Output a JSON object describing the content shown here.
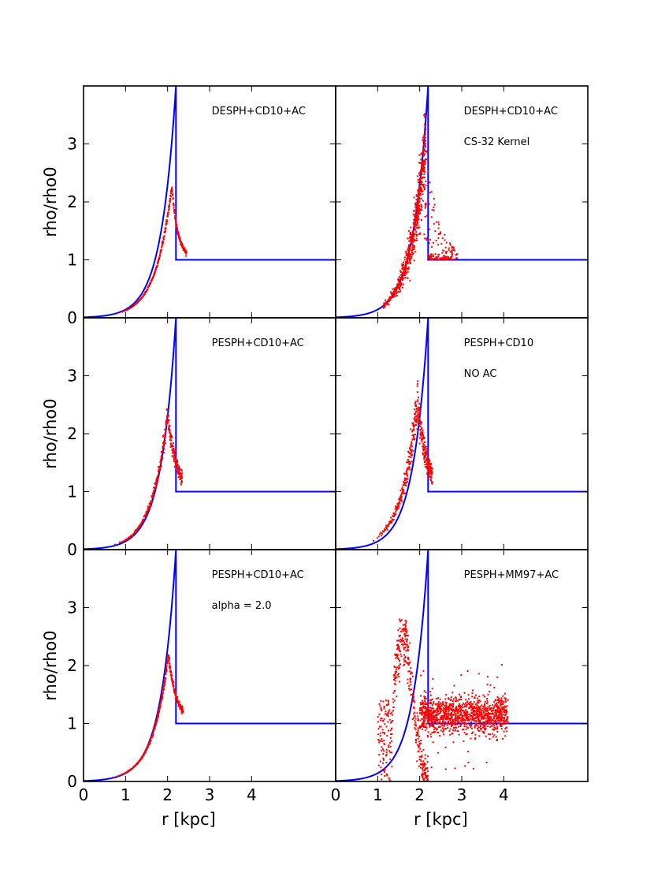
{
  "chart_data": [
    {
      "type": "scatter",
      "row": 0,
      "col": 0,
      "annotations": [
        "DESPH+CD10+AC"
      ],
      "xlim": [
        0,
        6
      ],
      "ylim": [
        0,
        4
      ],
      "xticks": [
        "0",
        "1",
        "2",
        "3",
        "4"
      ],
      "yticks": [
        "0",
        "1",
        "2",
        "3"
      ],
      "xlabel": "",
      "ylabel": "rho/rho0",
      "colors": {
        "model": "#0000ff",
        "particles": "#ff0000"
      },
      "model_curve": {
        "name": "analytic",
        "r_shock": 2.2,
        "peak": 4.0,
        "post": 1.0,
        "scale": 0.36
      },
      "particles": {
        "kind": "tight",
        "r_peak": 2.1,
        "peak": 2.27,
        "r_start": 0.8,
        "decay": 0.15,
        "count": 320,
        "jitter": 0.015
      }
    },
    {
      "type": "scatter",
      "row": 0,
      "col": 1,
      "annotations": [
        "DESPH+CD10+AC",
        "CS-32 Kernel"
      ],
      "xlim": [
        0,
        6
      ],
      "ylim": [
        0,
        4
      ],
      "xticks": [
        "0",
        "1",
        "2",
        "3",
        "4"
      ],
      "yticks": [
        "0",
        "1",
        "2",
        "3"
      ],
      "xlabel": "",
      "ylabel": "",
      "colors": {
        "model": "#0000ff",
        "particles": "#ff0000"
      },
      "model_curve": {
        "name": "analytic",
        "r_shock": 2.2,
        "peak": 4.0,
        "post": 1.0,
        "scale": 0.36
      },
      "particles": {
        "kind": "noisy_peak",
        "r_peak": 2.1,
        "peak": 2.8,
        "max": 3.6,
        "r_start": 1.0,
        "r_end": 2.9,
        "count": 600
      }
    },
    {
      "type": "scatter",
      "row": 1,
      "col": 0,
      "annotations": [
        "PESPH+CD10+AC"
      ],
      "xlim": [
        0,
        6
      ],
      "ylim": [
        0,
        4
      ],
      "xticks": [
        "0",
        "1",
        "2",
        "3",
        "4"
      ],
      "yticks": [
        "0",
        "1",
        "2",
        "3"
      ],
      "xlabel": "",
      "ylabel": "rho/rho0",
      "colors": {
        "model": "#0000ff",
        "particles": "#ff0000"
      },
      "model_curve": {
        "name": "analytic",
        "r_shock": 2.2,
        "peak": 4.0,
        "post": 1.0,
        "scale": 0.36
      },
      "particles": {
        "kind": "tight",
        "r_peak": 2.0,
        "peak": 2.35,
        "r_start": 0.75,
        "decay": 0.2,
        "count": 360,
        "jitter": 0.04
      }
    },
    {
      "type": "scatter",
      "row": 1,
      "col": 1,
      "annotations": [
        "PESPH+CD10",
        "NO AC"
      ],
      "xlim": [
        0,
        6
      ],
      "ylim": [
        0,
        4
      ],
      "xticks": [
        "0",
        "1",
        "2",
        "3",
        "4"
      ],
      "yticks": [
        "0",
        "1",
        "2",
        "3"
      ],
      "xlabel": "",
      "ylabel": "",
      "colors": {
        "model": "#0000ff",
        "particles": "#ff0000"
      },
      "model_curve": {
        "name": "analytic",
        "r_shock": 2.2,
        "peak": 4.0,
        "post": 1.0,
        "scale": 0.36
      },
      "particles": {
        "kind": "tight",
        "r_peak": 1.95,
        "peak": 2.6,
        "r_start": 0.9,
        "decay": 0.2,
        "count": 420,
        "jitter": 0.07
      }
    },
    {
      "type": "scatter",
      "row": 2,
      "col": 0,
      "annotations": [
        "PESPH+CD10+AC",
        "alpha = 2.0"
      ],
      "xlim": [
        0,
        6
      ],
      "ylim": [
        0,
        4
      ],
      "xticks": [
        "0",
        "1",
        "2",
        "3",
        "4"
      ],
      "yticks": [
        "0",
        "1",
        "2",
        "3"
      ],
      "xlabel": "r [kpc]",
      "ylabel": "rho/rho0",
      "colors": {
        "model": "#0000ff",
        "particles": "#ff0000"
      },
      "model_curve": {
        "name": "analytic",
        "r_shock": 2.2,
        "peak": 4.0,
        "post": 1.0,
        "scale": 0.36
      },
      "particles": {
        "kind": "tight",
        "r_peak": 2.02,
        "peak": 2.18,
        "r_start": 0.7,
        "decay": 0.2,
        "count": 340,
        "jitter": 0.02
      }
    },
    {
      "type": "scatter",
      "row": 2,
      "col": 1,
      "annotations": [
        "PESPH+MM97+AC"
      ],
      "xlim": [
        0,
        6
      ],
      "ylim": [
        0,
        4
      ],
      "xticks": [
        "0",
        "1",
        "2",
        "3",
        "4"
      ],
      "yticks": [
        "0",
        "1",
        "2",
        "3"
      ],
      "xlabel": "r [kpc]",
      "ylabel": "",
      "colors": {
        "model": "#0000ff",
        "particles": "#ff0000"
      },
      "model_curve": {
        "name": "analytic",
        "r_shock": 2.2,
        "peak": 4.0,
        "post": 1.0,
        "scale": 0.36
      },
      "particles": {
        "kind": "diffuse",
        "r_peak": 1.6,
        "peak": 2.5,
        "max": 2.8,
        "r_start": 1.0,
        "r_end": 4.1,
        "post_mean": 1.15,
        "count": 1600
      }
    }
  ]
}
